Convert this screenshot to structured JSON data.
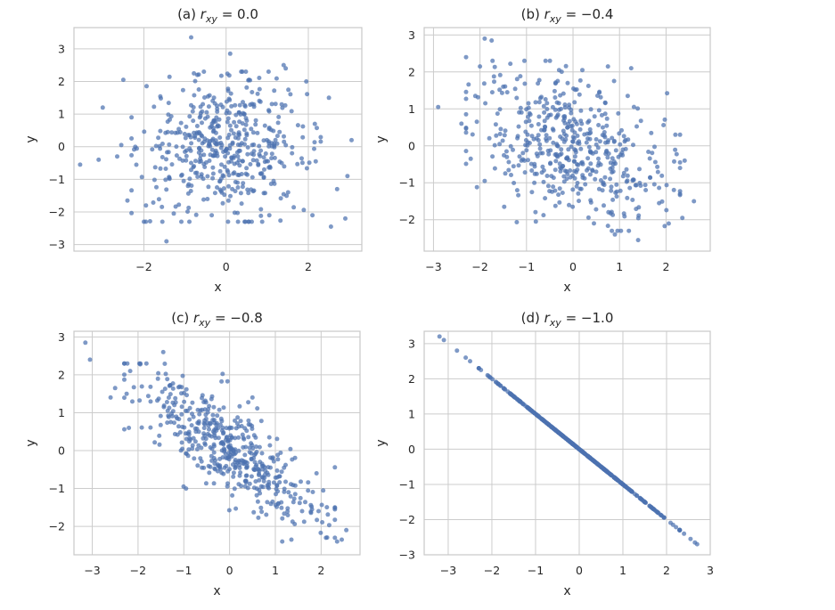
{
  "chart_data": [
    {
      "id": "a",
      "type": "scatter",
      "title": {
        "prefix": "(a) ",
        "var": "r",
        "sub": "xy",
        "rel": " = ",
        "value": "0.0"
      },
      "xlabel": "x",
      "ylabel": "y",
      "xlim": [
        -3.7,
        3.3
      ],
      "ylim": [
        -3.2,
        3.65
      ],
      "xticks": [
        -2,
        0,
        2
      ],
      "yticks": [
        -3,
        -2,
        -1,
        0,
        1,
        2,
        3
      ],
      "n_points": 500,
      "correlation": 0.0,
      "grid": true,
      "color": "#4c72b0",
      "points": [
        [
          -0.85,
          3.35
        ],
        [
          0.1,
          2.85
        ],
        [
          1.4,
          2.5
        ],
        [
          1.45,
          2.4
        ],
        [
          -2.5,
          2.05
        ],
        [
          -0.7,
          2.2
        ],
        [
          -3.0,
          1.2
        ],
        [
          -3.55,
          -0.55
        ],
        [
          -3.1,
          -0.4
        ],
        [
          2.5,
          1.5
        ],
        [
          3.05,
          0.2
        ],
        [
          2.95,
          -0.9
        ],
        [
          2.9,
          -2.2
        ],
        [
          2.55,
          -2.45
        ],
        [
          -1.45,
          -2.9
        ],
        [
          -1.55,
          -2.3
        ],
        [
          -2.4,
          -1.65
        ],
        [
          -1.95,
          -1.8
        ],
        [
          2.1,
          -2.1
        ],
        [
          1.05,
          -2.1
        ],
        [
          0.45,
          -2.3
        ],
        [
          -0.35,
          -2.1
        ],
        [
          2.7,
          -1.3
        ],
        [
          1.95,
          2.0
        ],
        [
          -2.3,
          0.9
        ],
        [
          -2.55,
          0.05
        ],
        [
          -2.65,
          -0.3
        ]
      ]
    },
    {
      "id": "b",
      "type": "scatter",
      "title": {
        "prefix": "(b) ",
        "var": "r",
        "sub": "xy",
        "rel": " = ",
        "value": "−0.4"
      },
      "xlabel": "x",
      "ylabel": "y",
      "xlim": [
        -3.2,
        2.95
      ],
      "ylim": [
        -2.85,
        3.2
      ],
      "xticks": [
        -3,
        -2,
        -1,
        0,
        1,
        2
      ],
      "yticks": [
        -2,
        -1,
        0,
        1,
        2,
        3
      ],
      "n_points": 500,
      "correlation": -0.4,
      "grid": true,
      "color": "#4c72b0",
      "points": [
        [
          -1.9,
          2.9
        ],
        [
          -1.75,
          2.85
        ],
        [
          -2.3,
          2.4
        ],
        [
          -2.0,
          2.15
        ],
        [
          -2.9,
          1.05
        ],
        [
          -2.4,
          0.6
        ],
        [
          -1.9,
          -0.95
        ],
        [
          -2.2,
          -0.35
        ],
        [
          2.6,
          -1.5
        ],
        [
          2.35,
          -1.95
        ],
        [
          1.4,
          -2.55
        ],
        [
          1.2,
          -2.3
        ],
        [
          0.9,
          -2.4
        ],
        [
          -0.8,
          -2.05
        ],
        [
          0.75,
          2.15
        ],
        [
          1.25,
          2.1
        ],
        [
          -0.3,
          2.05
        ],
        [
          0.2,
          2.05
        ],
        [
          2.2,
          0.3
        ],
        [
          2.4,
          -0.4
        ],
        [
          2.3,
          -1.3
        ],
        [
          0.45,
          -2.1
        ],
        [
          -1.5,
          1.6
        ],
        [
          -2.1,
          1.35
        ]
      ]
    },
    {
      "id": "c",
      "type": "scatter",
      "title": {
        "prefix": "(c) ",
        "var": "r",
        "sub": "xy",
        "rel": " = ",
        "value": "−0.8"
      },
      "xlabel": "x",
      "ylabel": "y",
      "xlim": [
        -3.4,
        2.85
      ],
      "ylim": [
        -2.75,
        3.15
      ],
      "xticks": [
        -3,
        -2,
        -1,
        0,
        1,
        2
      ],
      "yticks": [
        -2,
        -1,
        0,
        1,
        2,
        3
      ],
      "n_points": 500,
      "correlation": -0.8,
      "grid": true,
      "color": "#4c72b0",
      "points": [
        [
          -3.15,
          2.85
        ],
        [
          -3.05,
          2.4
        ],
        [
          -1.45,
          2.6
        ],
        [
          -2.5,
          1.65
        ],
        [
          -2.2,
          0.6
        ],
        [
          2.55,
          -2.1
        ],
        [
          2.45,
          -2.35
        ],
        [
          2.35,
          -2.4
        ],
        [
          2.3,
          -1.5
        ],
        [
          1.35,
          -2.35
        ],
        [
          1.15,
          -2.4
        ],
        [
          -1.95,
          2.3
        ],
        [
          0.5,
          1.4
        ],
        [
          -0.95,
          -1.0
        ],
        [
          1.9,
          -0.6
        ],
        [
          -2.25,
          1.5
        ],
        [
          -2.6,
          1.4
        ]
      ]
    },
    {
      "id": "d",
      "type": "scatter",
      "title": {
        "prefix": "(d) ",
        "var": "r",
        "sub": "xy",
        "rel": " = ",
        "value": "−1.0"
      },
      "xlabel": "x",
      "ylabel": "y",
      "xlim": [
        -3.55,
        3.0
      ],
      "ylim": [
        -3.0,
        3.35
      ],
      "xticks": [
        -3,
        -2,
        -1,
        0,
        1,
        2,
        3
      ],
      "yticks": [
        -3,
        -2,
        -1,
        0,
        1,
        2,
        3
      ],
      "n_points": 500,
      "correlation": -1.0,
      "grid": true,
      "color": "#4c72b0",
      "points": [
        [
          -3.2,
          3.2
        ],
        [
          -3.1,
          3.1
        ],
        [
          -2.8,
          2.8
        ],
        [
          -2.6,
          2.6
        ],
        [
          -2.5,
          2.5
        ],
        [
          -2.25,
          2.25
        ],
        [
          -2.1,
          2.1
        ],
        [
          2.3,
          -2.3
        ],
        [
          2.4,
          -2.4
        ],
        [
          2.55,
          -2.55
        ],
        [
          2.65,
          -2.65
        ],
        [
          2.7,
          -2.7
        ]
      ]
    }
  ]
}
